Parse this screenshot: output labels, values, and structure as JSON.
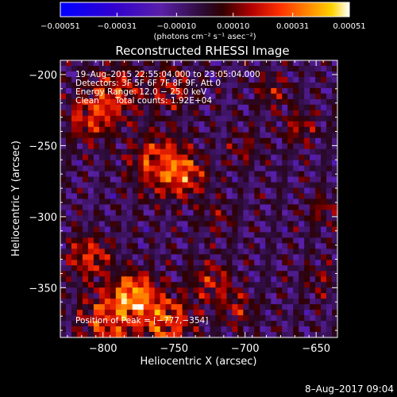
{
  "chart_data": {
    "type": "heatmap",
    "title": "Reconstructed RHESSI Image",
    "xlabel": "Heliocentric X (arcsec)",
    "ylabel": "Heliocentric Y (arcsec)",
    "xlim": [
      -830,
      -635
    ],
    "ylim": [
      -385,
      -190
    ],
    "x_ticks": [
      -800,
      -750,
      -700,
      -650
    ],
    "y_ticks": [
      -200,
      -250,
      -300,
      -350
    ],
    "x_tick_labels": [
      "−800",
      "−750",
      "−700",
      "−650"
    ],
    "y_tick_labels": [
      "−200",
      "−250",
      "−300",
      "−350"
    ],
    "grid": false,
    "colorbar": {
      "range": [
        -0.00051,
        0.00051
      ],
      "tick_values": [
        -0.00051,
        -0.00031,
        -0.0001,
        0.0001,
        0.00031,
        0.00051
      ],
      "tick_labels": [
        "−0.00051",
        "−0.00031",
        "−0.00010",
        "0.00010",
        "0.00031",
        "0.00051"
      ],
      "unit_label": "(photons cm⁻² s⁻¹ asec⁻²)"
    },
    "annotations": {
      "time_range": "19–Aug–2015 22:55:04.000 to 23:05:04.000",
      "detectors": "Detectors: 3F 5F 6F 7F 8F 9F, Att 0",
      "energy_range": "Energy Range: 12.0 − 25.0 keV",
      "algorithm": "Clean",
      "total_counts": "Total counts: 1.92E+04",
      "peak": "Position of Peak = [−777,−354]"
    },
    "peak_position": [
      -777,
      -354
    ],
    "grid_size": [
      50,
      50
    ],
    "bright_sources": [
      {
        "x": -777,
        "y": -354,
        "strength": 0.00051,
        "width": 10
      },
      {
        "x": -795,
        "y": -372,
        "strength": 0.0004,
        "width": 14
      },
      {
        "x": -755,
        "y": -373,
        "strength": 0.00042,
        "width": 12
      },
      {
        "x": -810,
        "y": -328,
        "strength": 0.00036,
        "width": 10
      },
      {
        "x": -760,
        "y": -262,
        "strength": 0.00038,
        "width": 14
      },
      {
        "x": -742,
        "y": -272,
        "strength": 0.00032,
        "width": 10
      },
      {
        "x": -808,
        "y": -230,
        "strength": 0.00034,
        "width": 12
      },
      {
        "x": -790,
        "y": -212,
        "strength": 0.0003,
        "width": 12
      },
      {
        "x": -752,
        "y": -210,
        "strength": 0.00026,
        "width": 10
      },
      {
        "x": -724,
        "y": -346,
        "strength": 0.00028,
        "width": 10
      },
      {
        "x": -705,
        "y": -365,
        "strength": 0.00026,
        "width": 8
      },
      {
        "x": -680,
        "y": -212,
        "strength": 0.00022,
        "width": 8
      },
      {
        "x": -662,
        "y": -238,
        "strength": 0.00024,
        "width": 8
      },
      {
        "x": -645,
        "y": -295,
        "strength": 0.0002,
        "width": 8
      },
      {
        "x": -648,
        "y": -345,
        "strength": 0.00018,
        "width": 8
      },
      {
        "x": -700,
        "y": -252,
        "strength": 0.00018,
        "width": 8
      },
      {
        "x": -720,
        "y": -300,
        "strength": 0.00016,
        "width": 8
      }
    ],
    "background_level": -4e-05
  },
  "footer": {
    "date": "8–Aug–2017 09:04"
  },
  "colors": {
    "background": "#000000",
    "text": "#ffffff"
  },
  "colormap": [
    {
      "pos": 0.0,
      "color": "#0000ff"
    },
    {
      "pos": 0.18,
      "color": "#3000d0"
    },
    {
      "pos": 0.35,
      "color": "#5a20a8"
    },
    {
      "pos": 0.5,
      "color": "#2a0a30"
    },
    {
      "pos": 0.56,
      "color": "#300000"
    },
    {
      "pos": 0.66,
      "color": "#b00000"
    },
    {
      "pos": 0.76,
      "color": "#ff3000"
    },
    {
      "pos": 0.86,
      "color": "#ff8a00"
    },
    {
      "pos": 0.94,
      "color": "#ffd200"
    },
    {
      "pos": 1.0,
      "color": "#ffffff"
    }
  ]
}
